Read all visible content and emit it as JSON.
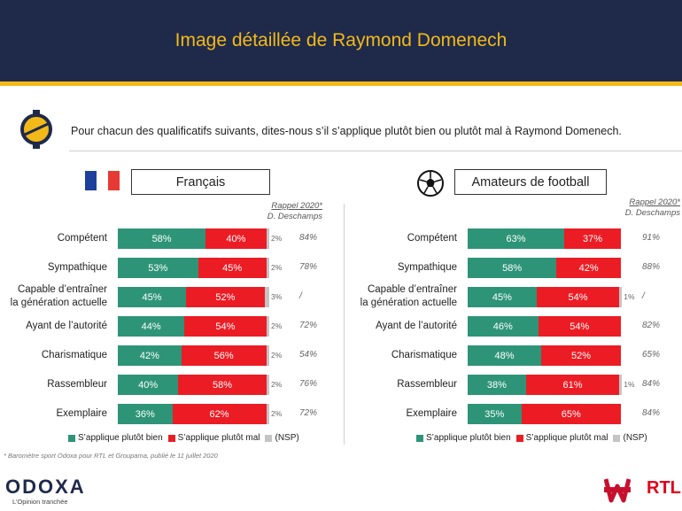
{
  "title": "Image détaillée de Raymond Domenech",
  "question": "Pour chacun des qualificatifs suivants, dites-nous s’il s’applique plutôt bien ou plutôt mal à Raymond Domenech.",
  "rappel_line1": "Rappel 2020*",
  "rappel_line2": "D. Deschamps",
  "legend": {
    "green": "S’applique plutôt bien",
    "red": "S’applique plutôt mal",
    "grey": "(NSP)"
  },
  "colors": {
    "green": "#2e9478",
    "red": "#ec1c24",
    "grey": "#c4c4c4",
    "navy": "#1f2a4a",
    "gold": "#f2b919"
  },
  "footnote": "* Baromètre sport Odoxa pour RTL et Groupama, publié le 11 juillet 2020",
  "brand": {
    "name": "ODOXA",
    "tagline": "L’Opinion tranchée",
    "partner": "RTL",
    "partner2": "WINAMAX"
  },
  "chart_data": [
    {
      "type": "bar",
      "panel_title": "Français",
      "icon": "france-flag-icon",
      "categories": [
        "Compétent",
        "Sympathique",
        "Capable d’entraîner la génération actuelle",
        "Ayant de l’autorité",
        "Charismatique",
        "Rassembleur",
        "Exemplaire"
      ],
      "label_lines": [
        [
          "Compétent"
        ],
        [
          "Sympathique"
        ],
        [
          "Capable d’entraîner",
          "la génération actuelle"
        ],
        [
          "Ayant de l’autorité"
        ],
        [
          "Charismatique"
        ],
        [
          "Rassembleur"
        ],
        [
          "Exemplaire"
        ]
      ],
      "series": [
        {
          "name": "S’applique plutôt bien",
          "values": [
            58,
            53,
            45,
            44,
            42,
            40,
            36
          ]
        },
        {
          "name": "S’applique plutôt mal",
          "values": [
            40,
            45,
            52,
            54,
            56,
            58,
            62
          ]
        },
        {
          "name": "(NSP)",
          "values": [
            2,
            2,
            3,
            2,
            2,
            2,
            2
          ]
        }
      ],
      "recall_2020": [
        "84%",
        "78%",
        "/",
        "72%",
        "54%",
        "76%",
        "72%"
      ],
      "stacked": true,
      "unit": "%"
    },
    {
      "type": "bar",
      "panel_title": "Amateurs de football",
      "icon": "football-icon",
      "categories": [
        "Compétent",
        "Sympathique",
        "Capable d’entraîner la génération actuelle",
        "Ayant de l’autorité",
        "Charismatique",
        "Rassembleur",
        "Exemplaire"
      ],
      "label_lines": [
        [
          "Compétent"
        ],
        [
          "Sympathique"
        ],
        [
          "Capable d’entraîner",
          "la génération actuelle"
        ],
        [
          "Ayant de l’autorité"
        ],
        [
          "Charismatique"
        ],
        [
          "Rassembleur"
        ],
        [
          "Exemplaire"
        ]
      ],
      "series": [
        {
          "name": "S’applique plutôt bien",
          "values": [
            63,
            58,
            45,
            46,
            48,
            38,
            35
          ]
        },
        {
          "name": "S’applique plutôt mal",
          "values": [
            37,
            42,
            54,
            54,
            52,
            61,
            65
          ]
        },
        {
          "name": "(NSP)",
          "values": [
            0,
            0,
            1,
            0,
            0,
            1,
            0
          ]
        }
      ],
      "recall_2020": [
        "91%",
        "88%",
        "/",
        "82%",
        "65%",
        "84%",
        "84%"
      ],
      "stacked": true,
      "unit": "%"
    }
  ]
}
